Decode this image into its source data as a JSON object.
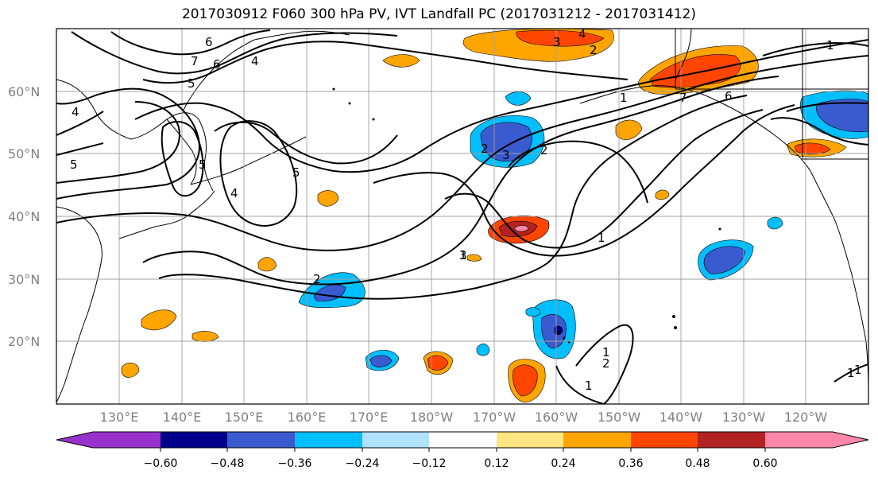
{
  "title": "2017030912 F060 300 hPa PV, IVT Landfall PC (2017031212 - 2017031412)",
  "lat_labels": [
    "60°N",
    "50°N",
    "40°N",
    "30°N",
    "20°N"
  ],
  "lon_labels": [
    "130°E",
    "140°E",
    "150°E",
    "160°E",
    "170°E",
    "180°W",
    "170°W",
    "160°W",
    "150°W",
    "140°W",
    "130°W",
    "120°W"
  ],
  "colorbar": {
    "tick_labels": [
      "−0.60",
      "−0.48",
      "−0.36",
      "−0.24",
      "−0.12",
      "0.12",
      "0.24",
      "0.36",
      "0.48",
      "0.60"
    ],
    "colors": [
      "#9932cc",
      "#00008b",
      "#3a5bd0",
      "#00bfff",
      "#b0e2ff",
      "#ffffff",
      "#ffe680",
      "#ffa500",
      "#ff4500",
      "#b22222",
      "#ff88aa"
    ]
  },
  "pv_contour_labels": [
    "6",
    "7",
    "6",
    "5",
    "4",
    "3",
    "4",
    "2",
    "1",
    "4",
    "5",
    "4",
    "5",
    "5",
    "7",
    "6",
    "1",
    "2",
    "3",
    "2",
    "1",
    "1",
    "3",
    "2",
    "1",
    "2",
    "1",
    "1",
    "1"
  ]
}
